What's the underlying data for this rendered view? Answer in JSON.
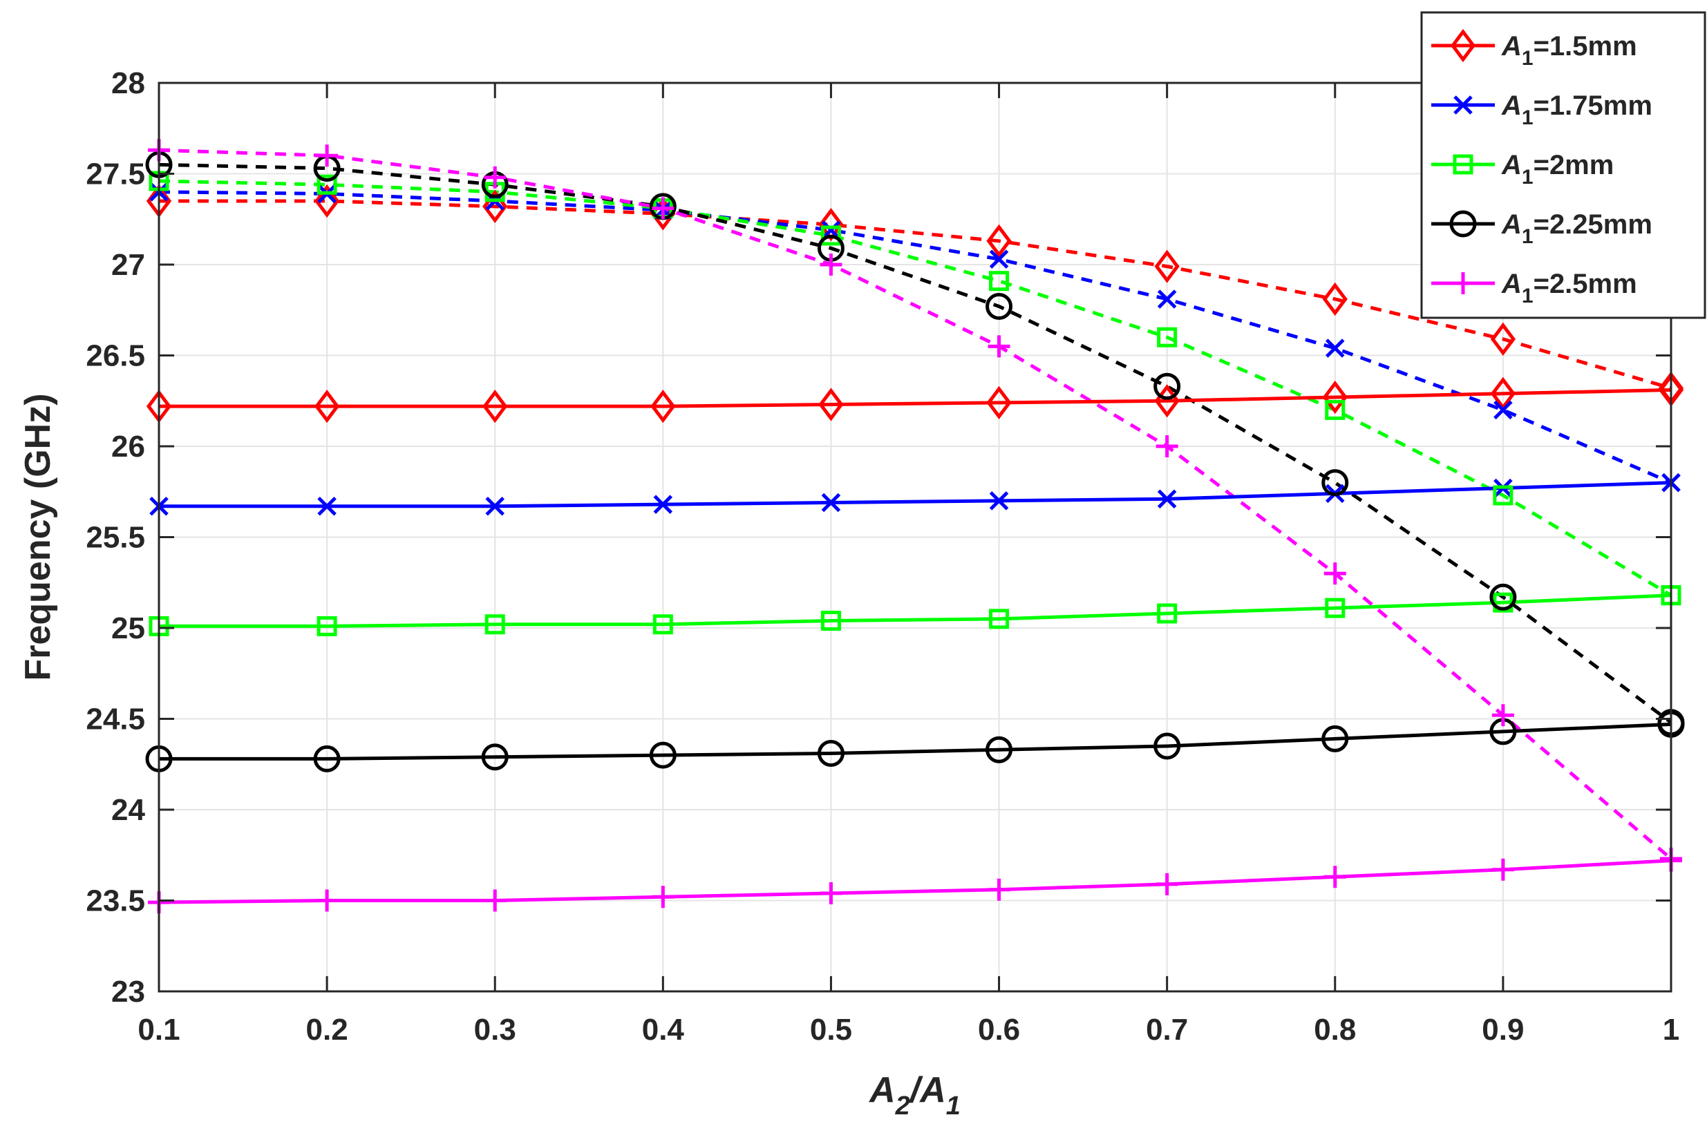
{
  "chart_data": {
    "type": "line",
    "title": "",
    "xlabel": {
      "main": "A",
      "sub": "2",
      "sep": "/",
      "main2": "A",
      "sub2": "1"
    },
    "ylabel": "Frequency (GHz)",
    "xlim": [
      0.1,
      1
    ],
    "ylim": [
      23,
      28
    ],
    "grid": true,
    "legend_position": "top-right",
    "x": [
      0.1,
      0.2,
      0.3,
      0.4,
      0.5,
      0.6,
      0.7,
      0.8,
      0.9,
      1
    ],
    "x_tick_labels": [
      "0.1",
      "0.2",
      "0.3",
      "0.4",
      "0.5",
      "0.6",
      "0.7",
      "0.8",
      "0.9",
      "1"
    ],
    "y_ticks": [
      23,
      23.5,
      24,
      24.5,
      25,
      25.5,
      26,
      26.5,
      27,
      27.5,
      28
    ],
    "y_tick_labels": [
      "23",
      "23.5",
      "24",
      "24.5",
      "25",
      "25.5",
      "26",
      "26.5",
      "27",
      "27.5",
      "28"
    ],
    "series": [
      {
        "name": "A1=1.5mm",
        "label_main": "A",
        "label_sub": "1",
        "label_rest": "=1.5mm",
        "color": "#ff0000",
        "marker": "diamond",
        "solid": [
          26.22,
          26.22,
          26.22,
          26.22,
          26.23,
          26.24,
          26.25,
          26.27,
          26.29,
          26.31
        ],
        "dashed": [
          27.35,
          27.35,
          27.32,
          27.28,
          27.22,
          27.13,
          26.99,
          26.81,
          26.59,
          26.32
        ]
      },
      {
        "name": "A1=1.75mm",
        "label_main": "A",
        "label_sub": "1",
        "label_rest": "=1.75mm",
        "color": "#0000ff",
        "marker": "x",
        "solid": [
          25.67,
          25.67,
          25.67,
          25.68,
          25.69,
          25.7,
          25.71,
          25.74,
          25.77,
          25.8
        ],
        "dashed": [
          27.4,
          27.39,
          27.35,
          27.3,
          27.19,
          27.03,
          26.81,
          26.54,
          26.2,
          25.8
        ]
      },
      {
        "name": "A1=2mm",
        "label_main": "A",
        "label_sub": "1",
        "label_rest": "=2mm",
        "color": "#00ff00",
        "marker": "square",
        "solid": [
          25.01,
          25.01,
          25.02,
          25.02,
          25.04,
          25.05,
          25.08,
          25.11,
          25.14,
          25.18
        ],
        "dashed": [
          27.46,
          27.44,
          27.4,
          27.31,
          27.16,
          26.91,
          26.6,
          26.2,
          25.73,
          25.18
        ]
      },
      {
        "name": "A1=2.25mm",
        "label_main": "A",
        "label_sub": "1",
        "label_rest": "=2.25mm",
        "color": "#000000",
        "marker": "circle",
        "solid": [
          24.28,
          24.28,
          24.29,
          24.3,
          24.31,
          24.33,
          24.35,
          24.39,
          24.43,
          24.47
        ],
        "dashed": [
          27.55,
          27.53,
          27.44,
          27.32,
          27.09,
          26.77,
          26.33,
          25.8,
          25.17,
          24.48
        ]
      },
      {
        "name": "A1=2.5mm",
        "label_main": "A",
        "label_sub": "1",
        "label_rest": "=2.5mm",
        "color": "#ff00ff",
        "marker": "plus",
        "solid": [
          23.49,
          23.5,
          23.5,
          23.52,
          23.54,
          23.56,
          23.59,
          23.63,
          23.67,
          23.72
        ],
        "dashed": [
          27.63,
          27.6,
          27.48,
          27.31,
          27.0,
          26.55,
          26.0,
          25.3,
          24.52,
          23.73
        ]
      }
    ]
  }
}
